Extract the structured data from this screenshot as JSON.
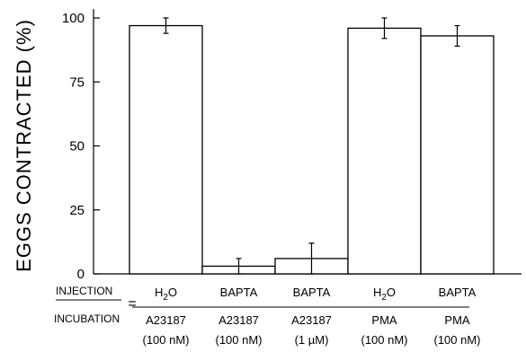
{
  "chart_data": {
    "type": "bar",
    "ylabel": "EGGS CONTRACTED (%)",
    "ylim": [
      0,
      100
    ],
    "yticks": [
      "0",
      "25",
      "50",
      "75",
      "100"
    ],
    "categories": [
      {
        "injection": "H2O",
        "incubation": "A23187",
        "concentration": "(100 nM)"
      },
      {
        "injection": "BAPTA",
        "incubation": "A23187",
        "concentration": "(100 nM)"
      },
      {
        "injection": "BAPTA",
        "incubation": "A23187",
        "concentration": "(1 µM)"
      },
      {
        "injection": "H2O",
        "incubation": "PMA",
        "concentration": "(100 nM)"
      },
      {
        "injection": "BAPTA",
        "incubation": "PMA",
        "concentration": "(100 nM)"
      }
    ],
    "values": [
      97,
      3,
      6,
      96,
      93
    ],
    "errors": [
      3,
      3,
      6,
      4,
      4
    ],
    "row_labels": {
      "injection": "INJECTION",
      "incubation": "INCUBATION",
      "equals": "="
    }
  }
}
